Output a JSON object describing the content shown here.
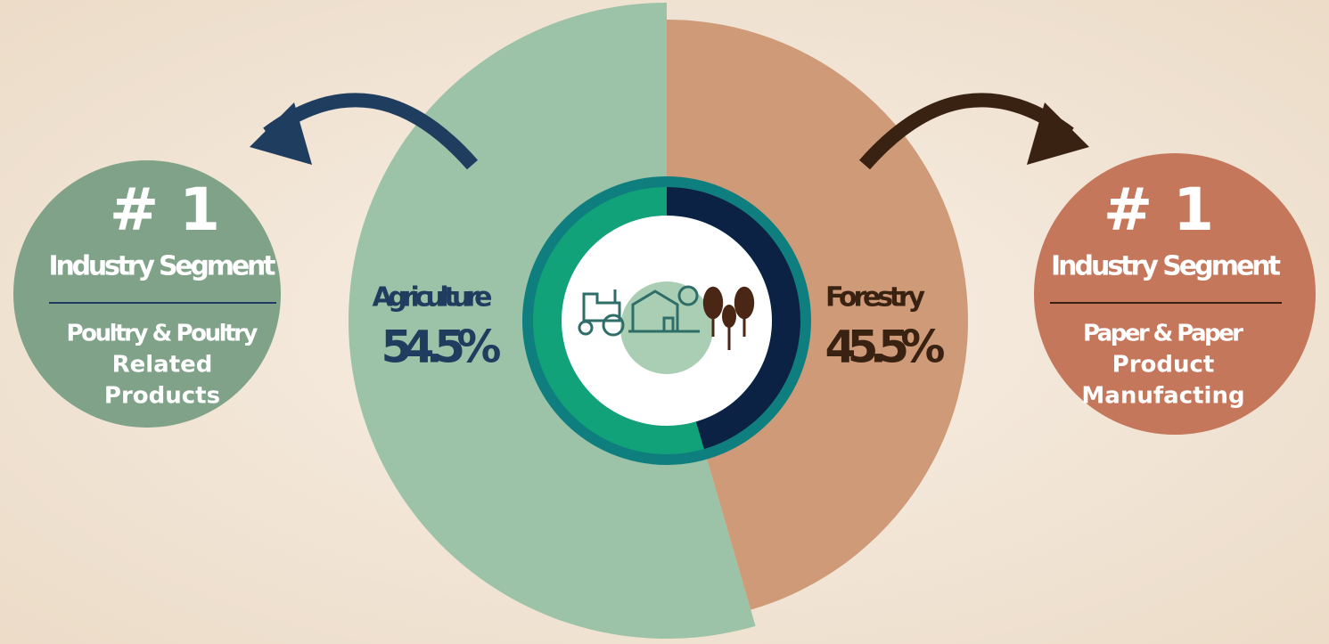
{
  "chart_data": {
    "type": "pie",
    "categories": [
      "Agriculture",
      "Forestry"
    ],
    "values": [
      54.5,
      45.5
    ],
    "value_labels": [
      "54.5%",
      "45.5%"
    ],
    "colors": [
      "#9cc2a7",
      "#cf9a78"
    ]
  },
  "panels": [
    {
      "rank": "# 1",
      "title": "Industry Segment",
      "detail": [
        "Poultry & Poultry",
        "Related",
        "Products"
      ]
    },
    {
      "rank": "# 1",
      "title": "Industry Segment",
      "detail": [
        "Paper & Paper",
        "Product",
        "Manufacting"
      ]
    }
  ]
}
